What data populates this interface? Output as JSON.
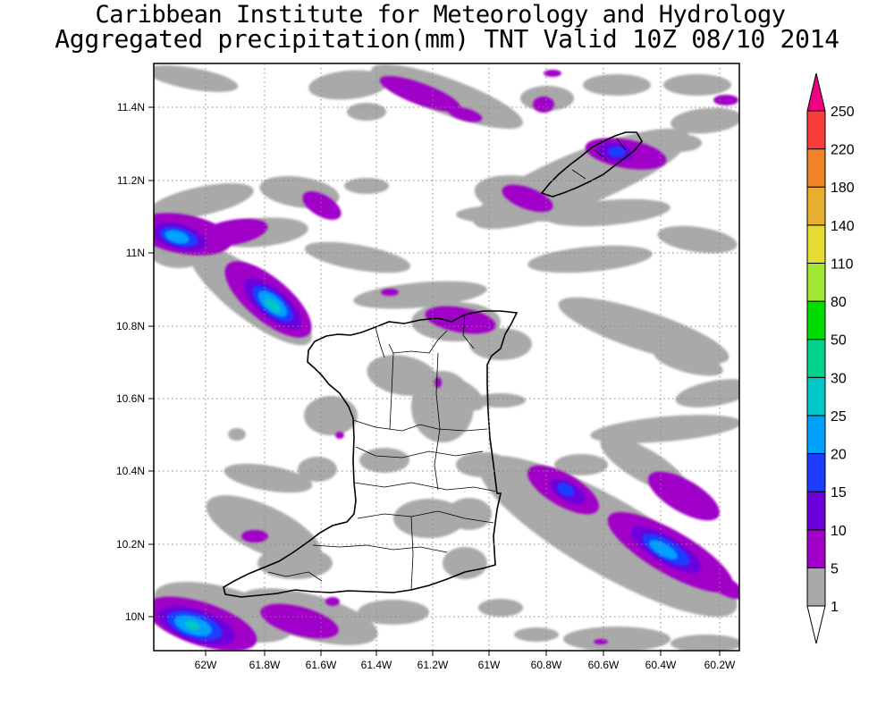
{
  "header": {
    "title": "Caribbean Institute for Meteorology and Hydrology",
    "subtitle": "Aggregated precipitation(mm) TNT Valid 10Z 08/10 2014"
  },
  "map": {
    "region": "Trinidad and Tobago",
    "lon_range": [
      -62.25,
      -60.15
    ],
    "lat_range": [
      9.9,
      11.52
    ],
    "grid": true,
    "lat_labels": [
      "11.4N",
      "11.2N",
      "11N",
      "10.8N",
      "10.6N",
      "10.4N",
      "10.2N",
      "10N"
    ],
    "lat_values": [
      11.4,
      11.2,
      11.0,
      10.8,
      10.6,
      10.4,
      10.2,
      10.0
    ],
    "lon_labels": [
      "62W",
      "61.8W",
      "61.6W",
      "61.4W",
      "61.2W",
      "61W",
      "60.8W",
      "60.6W",
      "60.4W",
      "60.2W"
    ],
    "lon_values": [
      -62.0,
      -61.8,
      -61.6,
      -61.4,
      -61.2,
      -61.0,
      -60.8,
      -60.6,
      -60.4,
      -60.2
    ]
  },
  "colorbar": {
    "orientation": "vertical",
    "levels": [
      "1",
      "5",
      "10",
      "15",
      "20",
      "25",
      "30",
      "50",
      "80",
      "110",
      "140",
      "180",
      "220",
      "250"
    ],
    "colors": [
      "#ffffff",
      "#a9a9a9",
      "#a000c8",
      "#6e00dc",
      "#1e3cff",
      "#00a0ff",
      "#00c8c8",
      "#00d28c",
      "#00dc00",
      "#a0e632",
      "#e6dc32",
      "#e6af2d",
      "#f08228",
      "#fa3c3c",
      "#f00082"
    ]
  },
  "precip_colors": {
    "gray": "#a9a9a9",
    "purple": "#a000c8",
    "violet": "#6e00dc",
    "blue": "#1e3cff",
    "lightblue": "#00a0ff",
    "cyan": "#00c8c8",
    "teal": "#00d28c"
  }
}
